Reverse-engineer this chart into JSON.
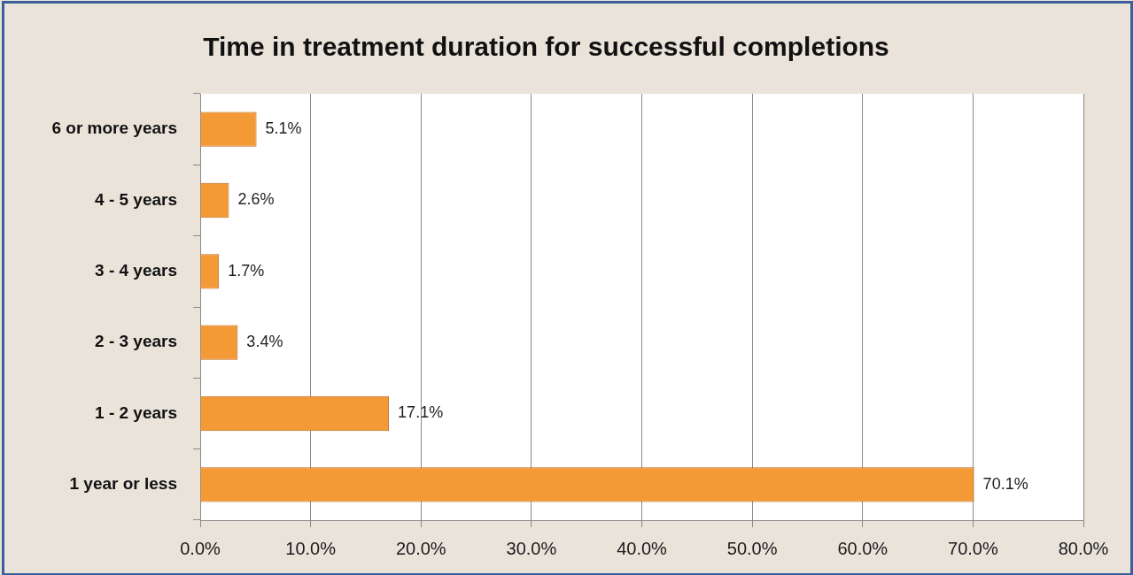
{
  "chart_data": {
    "type": "bar",
    "orientation": "horizontal",
    "title": "Time in treatment duration for successful completions",
    "categories": [
      "6 or more years",
      "4 - 5 years",
      "3 - 4 years",
      "2 - 3 years",
      "1 - 2 years",
      "1 year or less"
    ],
    "values": [
      5.1,
      2.6,
      1.7,
      3.4,
      17.1,
      70.1
    ],
    "value_labels": [
      "5.1%",
      "2.6%",
      "1.7%",
      "3.4%",
      "17.1%",
      "70.1%"
    ],
    "color": "#f39a36",
    "xlim": [
      0,
      80
    ],
    "xticks": [
      {
        "value": 0,
        "label": "0.0%"
      },
      {
        "value": 10,
        "label": "10.0%"
      },
      {
        "value": 20,
        "label": "20.0%"
      },
      {
        "value": 30,
        "label": "30.0%"
      },
      {
        "value": 40,
        "label": "40.0%"
      },
      {
        "value": 50,
        "label": "50.0%"
      },
      {
        "value": 60,
        "label": "60.0%"
      },
      {
        "value": 70,
        "label": "70.0%"
      },
      {
        "value": 80,
        "label": "80.0%"
      }
    ],
    "grid": "x"
  }
}
